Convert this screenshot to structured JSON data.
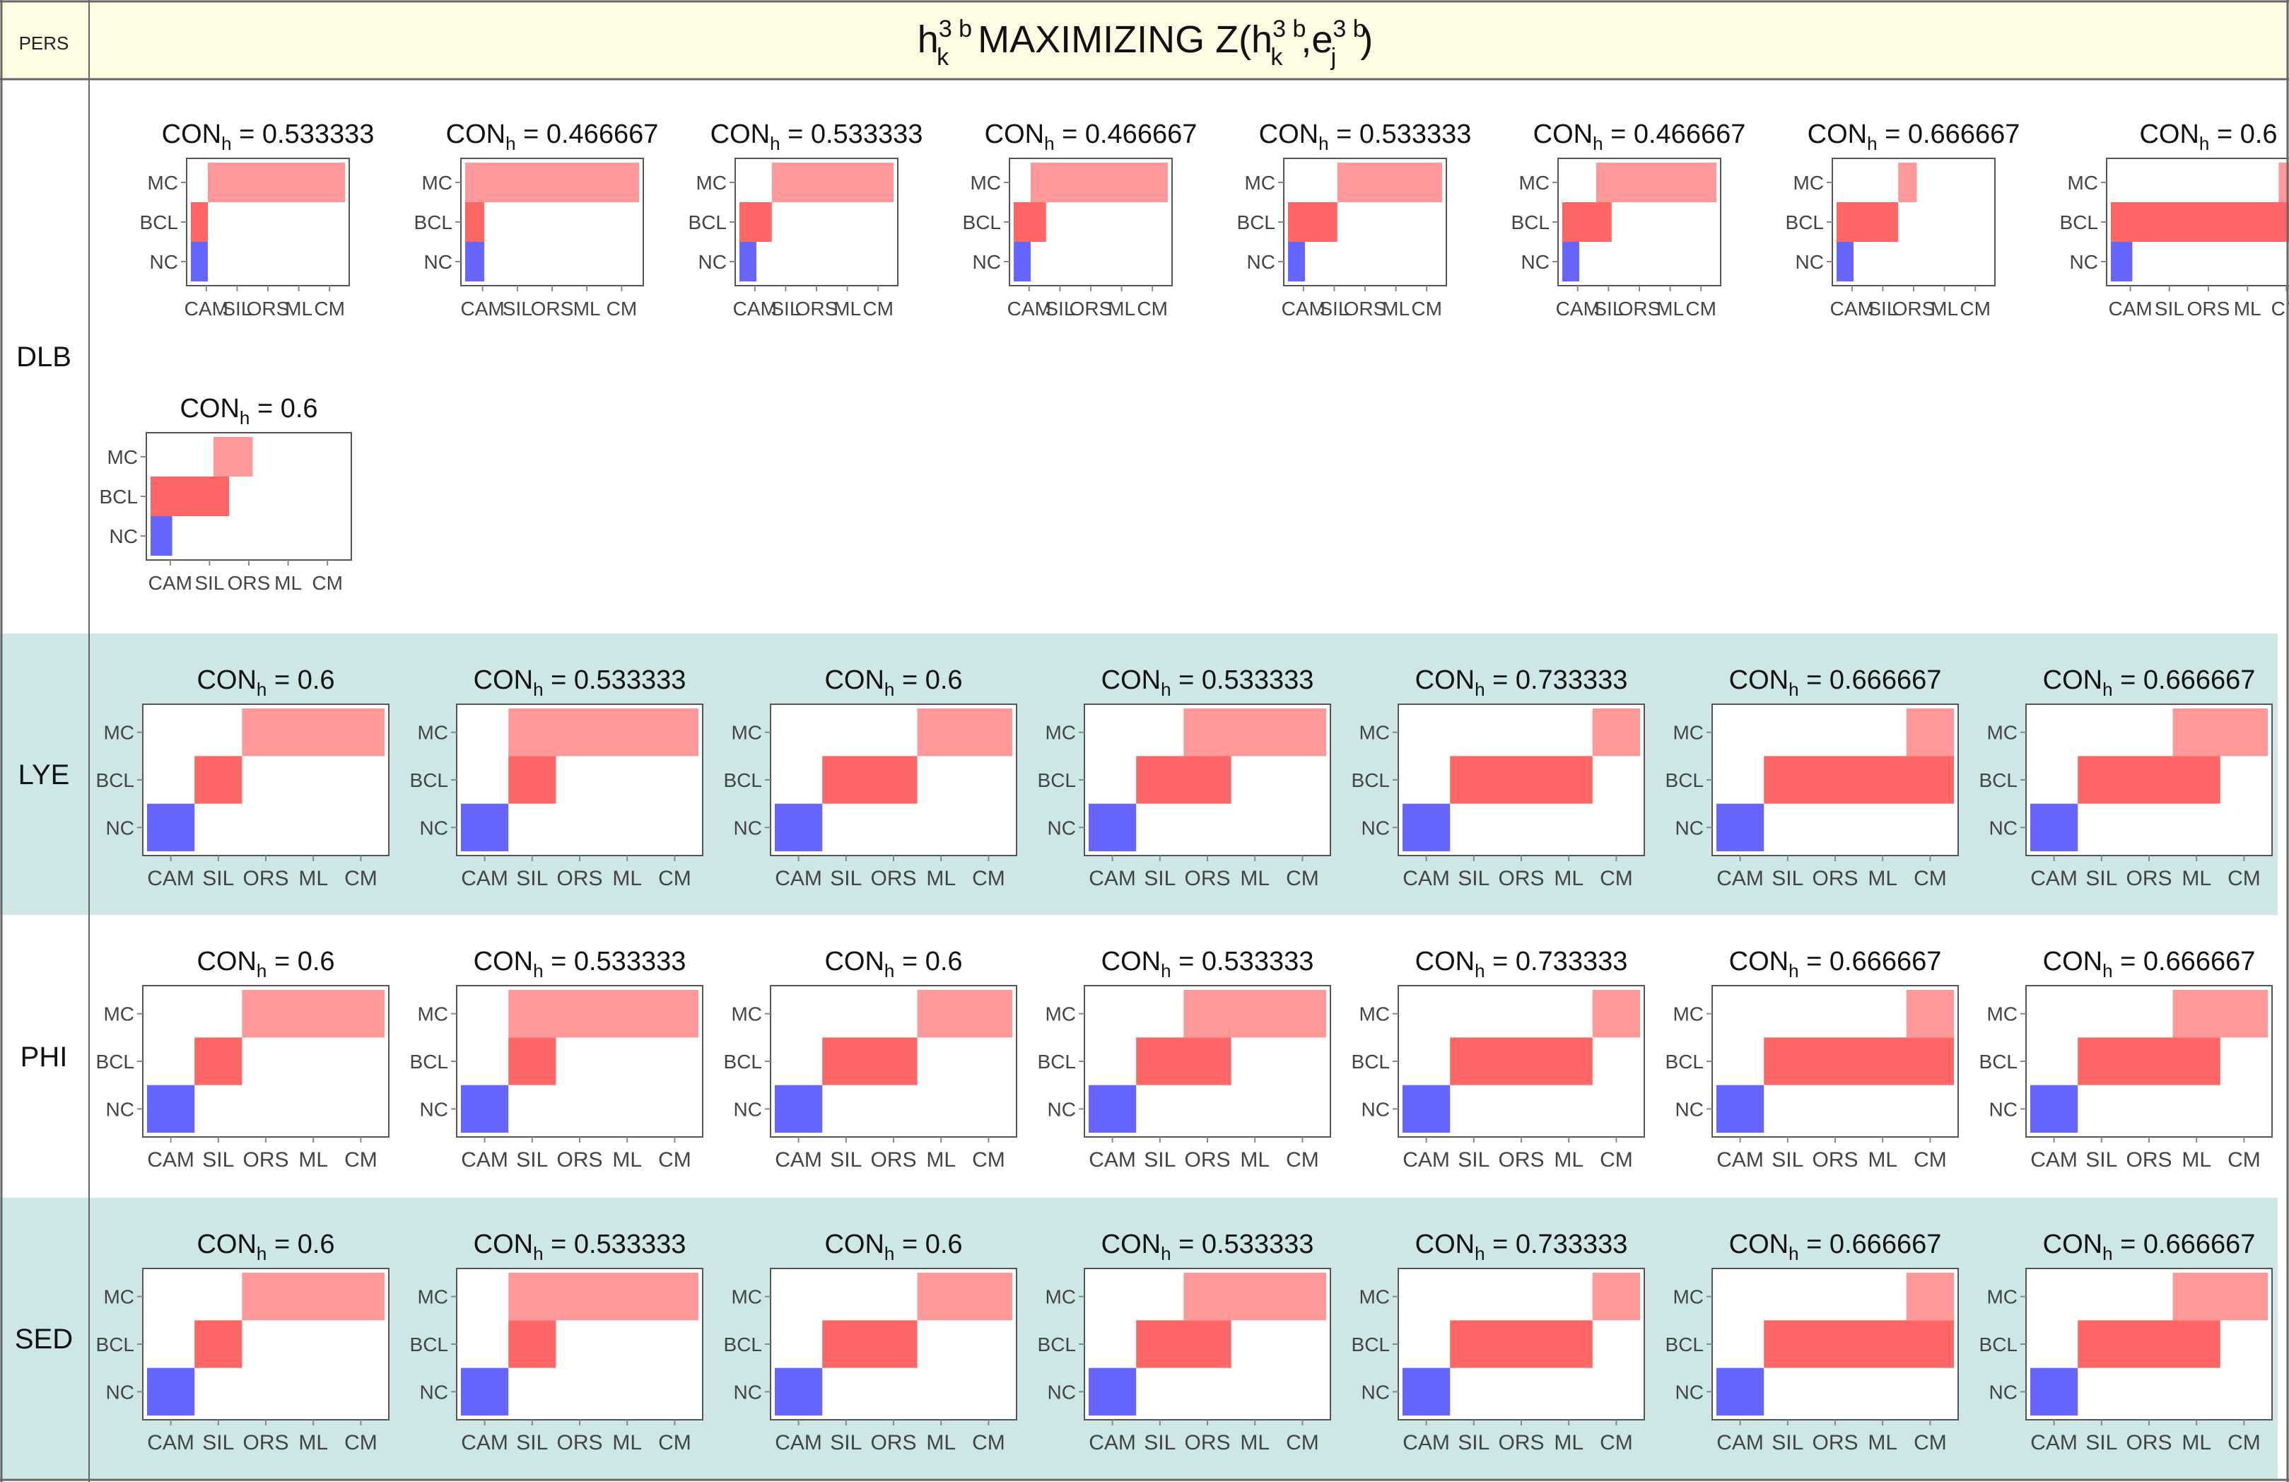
{
  "header": {
    "corner_label": "PERS",
    "title_base": "h",
    "title_sup": "3 b",
    "title_sub": "k",
    "title_mid": " MAXIMIZING Z(h",
    "title_sup2": "3 b",
    "title_sub2": "k",
    "title_comma": ",e",
    "title_sup3": "3 b",
    "title_sub3": "j",
    "title_end": ")"
  },
  "colors": {
    "header_bg": "#fdfce2",
    "band_bg": "#cde7e6",
    "nc": "#6666ff",
    "bcl": "#ff6666",
    "mc": "#ff9999",
    "frame": "#555555",
    "grid": "#888888"
  },
  "chart_data": {
    "type": "heatmap",
    "title": "h k 3b MAXIMIZING Z(h k 3b, e j 3b)",
    "x_categories": [
      "CAM",
      "SIL",
      "ORS",
      "ML",
      "CM"
    ],
    "y_categories": [
      "NC",
      "BCL",
      "MC"
    ],
    "label_prefix": "CON",
    "label_sub": "h",
    "note": "Each panel shows the span of x categories covered by each y class: [start, end) with start/end as category boundary indices 0..5.",
    "rows": [
      {
        "name": "DLB",
        "panels": [
          {
            "con": "0.533333",
            "NC": [
              0,
              0.55
            ],
            "BCL": [
              0,
              0.55
            ],
            "MC": [
              0.55,
              5
            ]
          },
          {
            "con": "0.466667",
            "NC": [
              0,
              0.55
            ],
            "BCL": [
              0,
              0.55
            ],
            "MC": [
              0,
              5
            ]
          },
          {
            "con": "0.533333",
            "NC": [
              0,
              0.55
            ],
            "BCL": [
              0,
              1.05
            ],
            "MC": [
              1.05,
              5
            ]
          },
          {
            "con": "0.466667",
            "NC": [
              0,
              0.55
            ],
            "BCL": [
              0,
              1.05
            ],
            "MC": [
              0.55,
              5
            ]
          },
          {
            "con": "0.533333",
            "NC": [
              0,
              0.55
            ],
            "BCL": [
              0,
              1.6
            ],
            "MC": [
              1.6,
              5
            ]
          },
          {
            "con": "0.466667",
            "NC": [
              0,
              0.55
            ],
            "BCL": [
              0,
              1.6
            ],
            "MC": [
              1.1,
              5
            ]
          },
          {
            "con": "0.666667",
            "NC": [
              0,
              0.55
            ],
            "BCL": [
              0,
              2.0
            ],
            "MC": [
              2.0,
              2.6
            ]
          },
          {
            "con": "0.6",
            "NC": [
              0,
              0.55
            ],
            "BCL": [
              0,
              5
            ],
            "MC": [
              4.3,
              5
            ]
          },
          {
            "con": "0.6",
            "NC": [
              0,
              0.55
            ],
            "BCL": [
              0,
              2.0
            ],
            "MC": [
              1.6,
              2.6
            ]
          }
        ]
      },
      {
        "name": "LYE",
        "panels": [
          {
            "con": "0.6",
            "NC": [
              0,
              1
            ],
            "BCL": [
              1,
              2
            ],
            "MC": [
              2,
              5
            ]
          },
          {
            "con": "0.533333",
            "NC": [
              0,
              1
            ],
            "BCL": [
              1,
              2
            ],
            "MC": [
              1,
              5
            ]
          },
          {
            "con": "0.6",
            "NC": [
              0,
              1
            ],
            "BCL": [
              1,
              3
            ],
            "MC": [
              3,
              5
            ]
          },
          {
            "con": "0.533333",
            "NC": [
              0,
              1
            ],
            "BCL": [
              1,
              3
            ],
            "MC": [
              2,
              5
            ]
          },
          {
            "con": "0.733333",
            "NC": [
              0,
              1
            ],
            "BCL": [
              1,
              4
            ],
            "MC": [
              4,
              5
            ]
          },
          {
            "con": "0.666667",
            "NC": [
              0,
              1
            ],
            "BCL": [
              1,
              5
            ],
            "MC": [
              4,
              5
            ]
          },
          {
            "con": "0.666667",
            "NC": [
              0,
              1
            ],
            "BCL": [
              1,
              4
            ],
            "MC": [
              3,
              5
            ]
          }
        ]
      },
      {
        "name": "PHI",
        "panels": [
          {
            "con": "0.6",
            "NC": [
              0,
              1
            ],
            "BCL": [
              1,
              2
            ],
            "MC": [
              2,
              5
            ]
          },
          {
            "con": "0.533333",
            "NC": [
              0,
              1
            ],
            "BCL": [
              1,
              2
            ],
            "MC": [
              1,
              5
            ]
          },
          {
            "con": "0.6",
            "NC": [
              0,
              1
            ],
            "BCL": [
              1,
              3
            ],
            "MC": [
              3,
              5
            ]
          },
          {
            "con": "0.533333",
            "NC": [
              0,
              1
            ],
            "BCL": [
              1,
              3
            ],
            "MC": [
              2,
              5
            ]
          },
          {
            "con": "0.733333",
            "NC": [
              0,
              1
            ],
            "BCL": [
              1,
              4
            ],
            "MC": [
              4,
              5
            ]
          },
          {
            "con": "0.666667",
            "NC": [
              0,
              1
            ],
            "BCL": [
              1,
              5
            ],
            "MC": [
              4,
              5
            ]
          },
          {
            "con": "0.666667",
            "NC": [
              0,
              1
            ],
            "BCL": [
              1,
              4
            ],
            "MC": [
              3,
              5
            ]
          }
        ]
      },
      {
        "name": "SED",
        "panels": [
          {
            "con": "0.6",
            "NC": [
              0,
              1
            ],
            "BCL": [
              1,
              2
            ],
            "MC": [
              2,
              5
            ]
          },
          {
            "con": "0.533333",
            "NC": [
              0,
              1
            ],
            "BCL": [
              1,
              2
            ],
            "MC": [
              1,
              5
            ]
          },
          {
            "con": "0.6",
            "NC": [
              0,
              1
            ],
            "BCL": [
              1,
              3
            ],
            "MC": [
              3,
              5
            ]
          },
          {
            "con": "0.533333",
            "NC": [
              0,
              1
            ],
            "BCL": [
              1,
              3
            ],
            "MC": [
              2,
              5
            ]
          },
          {
            "con": "0.733333",
            "NC": [
              0,
              1
            ],
            "BCL": [
              1,
              4
            ],
            "MC": [
              4,
              5
            ]
          },
          {
            "con": "0.666667",
            "NC": [
              0,
              1
            ],
            "BCL": [
              1,
              5
            ],
            "MC": [
              4,
              5
            ]
          },
          {
            "con": "0.666667",
            "NC": [
              0,
              1
            ],
            "BCL": [
              1,
              4
            ],
            "MC": [
              3,
              5
            ]
          }
        ]
      }
    ]
  }
}
